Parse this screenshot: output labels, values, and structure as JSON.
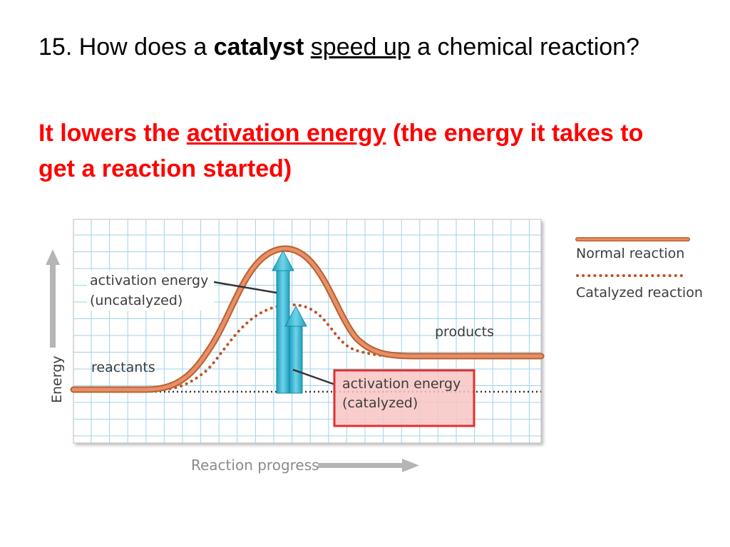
{
  "slide": {
    "question": {
      "prefix": "15. How does a ",
      "bold": "catalyst",
      "mid": " ",
      "underlined": "speed up",
      "suffix": " a chemical reaction?"
    },
    "answer": {
      "prefix": "It lowers the ",
      "underlined": "activation energy",
      "suffix": " (the energy it takes to get a reaction started)"
    }
  },
  "diagram": {
    "y_axis_label": "Energy",
    "x_axis_label": "Reaction progress",
    "labels": {
      "uncatalyzed_line1": "activation energy",
      "uncatalyzed_line2": "(uncatalyzed)",
      "reactants": "reactants",
      "products": "products",
      "catalyzed_line1": "activation energy",
      "catalyzed_line2": "(catalyzed)"
    },
    "legend": {
      "normal": "Normal reaction",
      "catalyzed": "Catalyzed reaction"
    },
    "colors": {
      "normal_curve": "#d9794a",
      "catalyzed_curve": "#c0501f",
      "arrow": "#2ab3cf",
      "grid": "#9fd3ea",
      "highlight_box_fill": "#f9c4c4",
      "highlight_box_stroke": "#e0302f"
    }
  }
}
